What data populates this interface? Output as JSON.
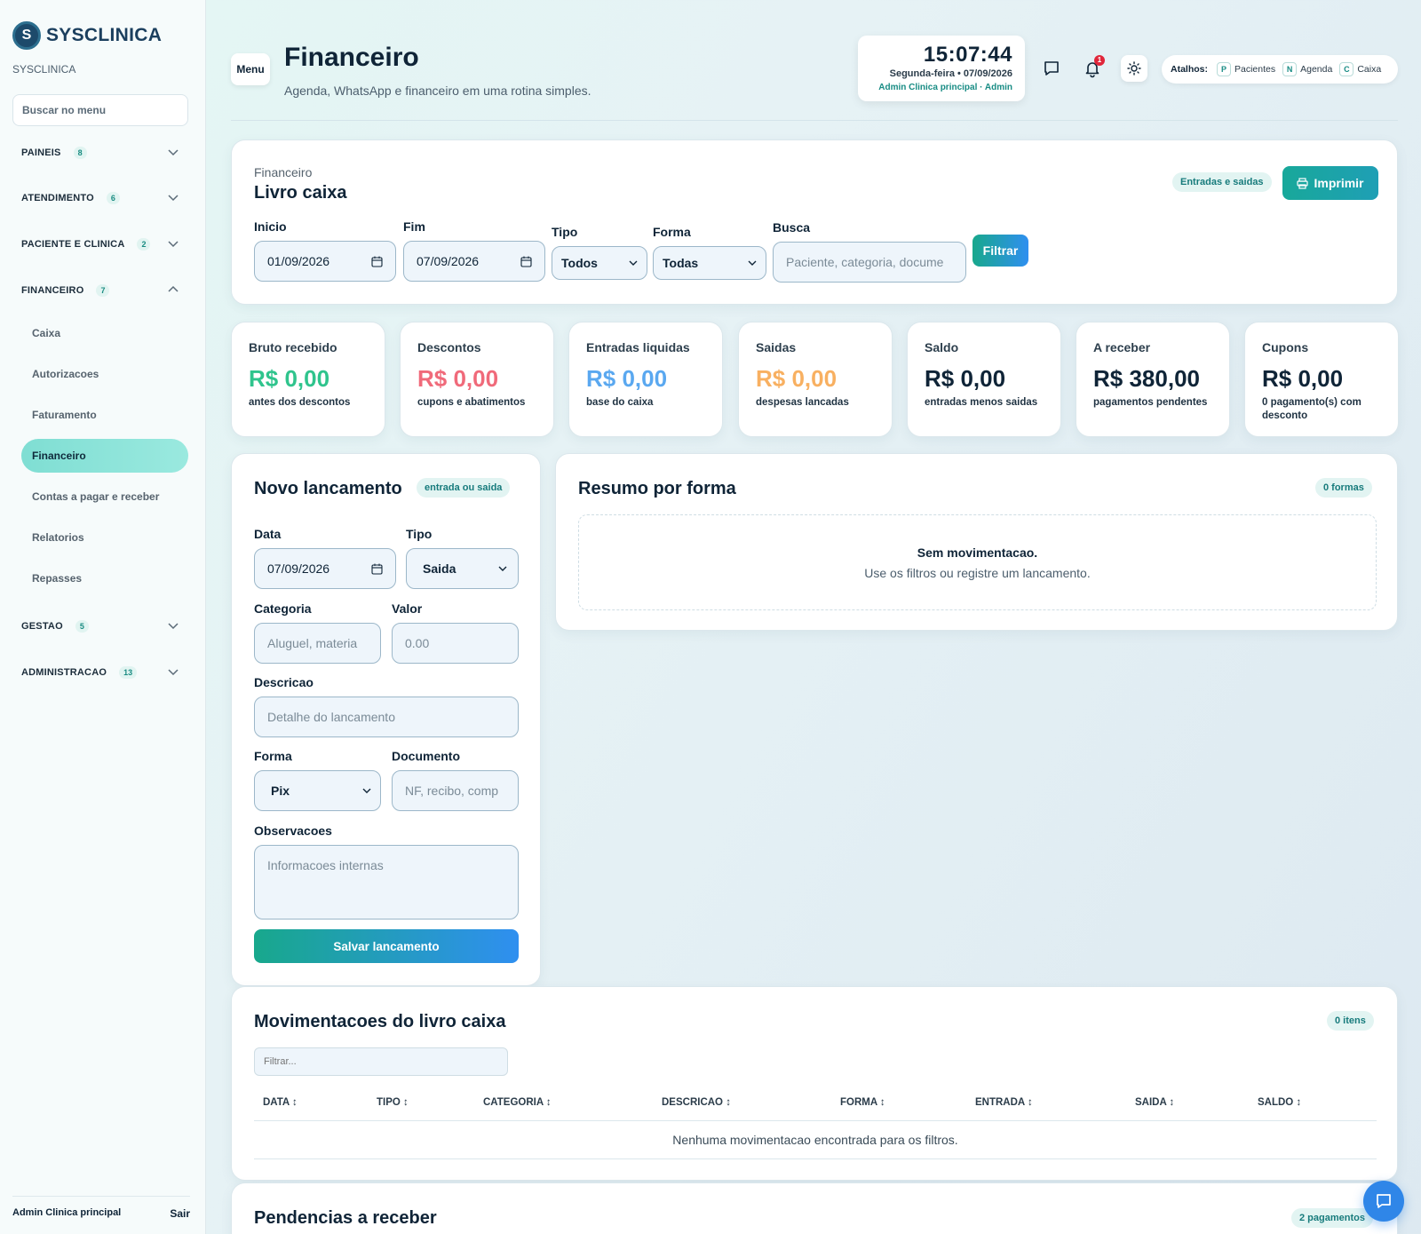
{
  "sidebar": {
    "brand": "SYSCLINICA",
    "subtitle": "SYSCLINICA",
    "search_placeholder": "Buscar no menu",
    "groups": [
      {
        "label": "PAINEIS",
        "count": "8"
      },
      {
        "label": "ATENDIMENTO",
        "count": "6"
      },
      {
        "label": "PACIENTE E CLINICA",
        "count": "2"
      },
      {
        "label": "FINANCEIRO",
        "count": "7"
      },
      {
        "label": "GESTAO",
        "count": "5"
      },
      {
        "label": "ADMINISTRACAO",
        "count": "13"
      }
    ],
    "financeiro_items": [
      "Caixa",
      "Autorizacoes",
      "Faturamento",
      "Financeiro",
      "Contas a pagar e receber",
      "Relatorios",
      "Repasses"
    ],
    "footer_user": "Admin Clinica principal",
    "logout": "Sair"
  },
  "header": {
    "menu_label": "Menu",
    "title": "Financeiro",
    "subtitle": "Agenda, WhatsApp e financeiro em uma rotina simples.",
    "clock_time": "15:07:44",
    "clock_date": "Segunda-feira • 07/09/2026",
    "clock_user": "Admin Clinica principal · Admin",
    "notif_count": "1",
    "shortcuts_label": "Atalhos:",
    "shortcuts": [
      {
        "key": "P",
        "label": "Pacientes"
      },
      {
        "key": "N",
        "label": "Agenda"
      },
      {
        "key": "C",
        "label": "Caixa"
      }
    ]
  },
  "filters": {
    "eyebrow": "Financeiro",
    "title": "Livro caixa",
    "tag": "Entradas e saidas",
    "print_label": "Imprimir",
    "inicio_label": "Inicio",
    "inicio_value": "01/09/2026",
    "fim_label": "Fim",
    "fim_value": "07/09/2026",
    "tipo_label": "Tipo",
    "tipo_value": "Todos",
    "forma_label": "Forma",
    "forma_value": "Todas",
    "busca_label": "Busca",
    "busca_placeholder": "Paciente, categoria, docume",
    "filter_button": "Filtrar"
  },
  "stats": [
    {
      "label": "Bruto recebido",
      "value": "R$ 0,00",
      "note": "antes dos descontos",
      "color": "#2fc48d"
    },
    {
      "label": "Descontos",
      "value": "R$ 0,00",
      "note": "cupons e abatimentos",
      "color": "#f06a7a"
    },
    {
      "label": "Entradas liquidas",
      "value": "R$ 0,00",
      "note": "base do caixa",
      "color": "#5aa8f0"
    },
    {
      "label": "Saidas",
      "value": "R$ 0,00",
      "note": "despesas lancadas",
      "color": "#f8b061"
    },
    {
      "label": "Saldo",
      "value": "R$ 0,00",
      "note": "entradas menos saidas",
      "color": "#0f2437"
    },
    {
      "label": "A receber",
      "value": "R$ 380,00",
      "note": "pagamentos pendentes",
      "color": "#0f2437"
    },
    {
      "label": "Cupons",
      "value": "R$ 0,00",
      "note": "0 pagamento(s) com desconto",
      "color": "#0f2437"
    }
  ],
  "novo": {
    "title": "Novo lancamento",
    "tag": "entrada ou saida",
    "data_label": "Data",
    "data_value": "07/09/2026",
    "tipo_label": "Tipo",
    "tipo_value": "Saida",
    "categoria_label": "Categoria",
    "categoria_placeholder": "Aluguel, materia",
    "valor_label": "Valor",
    "valor_placeholder": "0.00",
    "descricao_label": "Descricao",
    "descricao_placeholder": "Detalhe do lancamento",
    "forma_label": "Forma",
    "forma_value": "Pix",
    "documento_label": "Documento",
    "documento_placeholder": "NF, recibo, comp",
    "obs_label": "Observacoes",
    "obs_placeholder": "Informacoes internas",
    "save_label": "Salvar lancamento"
  },
  "resumo": {
    "title": "Resumo por forma",
    "tag": "0 formas",
    "empty_title": "Sem movimentacao.",
    "empty_text": "Use os filtros ou registre um lancamento."
  },
  "movimentacoes": {
    "title": "Movimentacoes do livro caixa",
    "tag": "0 itens",
    "filter_placeholder": "Filtrar...",
    "columns": [
      "DATA ↕",
      "TIPO ↕",
      "CATEGORIA ↕",
      "DESCRICAO ↕",
      "FORMA ↕",
      "ENTRADA ↕",
      "SAIDA ↕",
      "SALDO ↕"
    ],
    "empty": "Nenhuma movimentacao encontrada para os filtros."
  },
  "pendencias": {
    "title": "Pendencias a receber",
    "tag": "2 pagamentos"
  }
}
